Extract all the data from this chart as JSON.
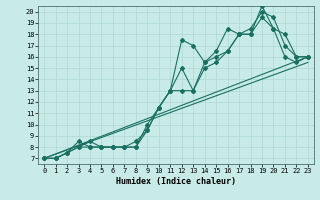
{
  "xlabel": "Humidex (Indice chaleur)",
  "bg_color": "#c8ebe8",
  "grid_color": "#b0d8d4",
  "line_color": "#1a7060",
  "xlim": [
    -0.5,
    23.5
  ],
  "ylim": [
    6.5,
    20.5
  ],
  "xticks": [
    0,
    1,
    2,
    3,
    4,
    5,
    6,
    7,
    8,
    9,
    10,
    11,
    12,
    13,
    14,
    15,
    16,
    17,
    18,
    19,
    20,
    21,
    22,
    23
  ],
  "yticks": [
    7,
    8,
    9,
    10,
    11,
    12,
    13,
    14,
    15,
    16,
    17,
    18,
    19,
    20
  ],
  "lines": [
    {
      "x": [
        0,
        1,
        2,
        3,
        4,
        5,
        6,
        7,
        8,
        9,
        10,
        11,
        12,
        13,
        14,
        15,
        16,
        17,
        18,
        19,
        20,
        21,
        22,
        23
      ],
      "y": [
        7,
        7,
        7.5,
        8,
        8,
        8,
        8,
        8,
        8,
        9.5,
        11.5,
        13,
        13,
        13,
        15,
        15.5,
        16.5,
        18,
        18.5,
        20,
        19.5,
        17,
        16,
        16
      ]
    },
    {
      "x": [
        0,
        1,
        2,
        3,
        4,
        5,
        6,
        7,
        8,
        9,
        10,
        11,
        12,
        13,
        14,
        15,
        16,
        17,
        18,
        19,
        20,
        21,
        22,
        23
      ],
      "y": [
        7,
        7,
        7.5,
        8.5,
        8,
        8,
        8,
        8,
        8,
        10,
        11.5,
        13,
        15,
        13,
        15.5,
        16.5,
        18.5,
        18,
        18,
        19.5,
        18.5,
        16,
        15.5,
        16
      ]
    },
    {
      "x": [
        0,
        1,
        2,
        3,
        4,
        5,
        6,
        7,
        8,
        9,
        10,
        11,
        12,
        13,
        14,
        15,
        16,
        17,
        18,
        19,
        20,
        21,
        22,
        23
      ],
      "y": [
        7,
        7,
        7.5,
        8,
        8.5,
        8,
        8,
        8,
        8.5,
        9.5,
        11.5,
        13,
        17.5,
        17,
        15.5,
        16,
        16.5,
        18,
        18,
        20.5,
        18.5,
        18,
        16,
        16
      ]
    },
    {
      "x": [
        0,
        23
      ],
      "y": [
        7,
        16
      ],
      "no_marker": true
    },
    {
      "x": [
        0,
        23
      ],
      "y": [
        7,
        15.5
      ],
      "no_marker": true
    }
  ]
}
